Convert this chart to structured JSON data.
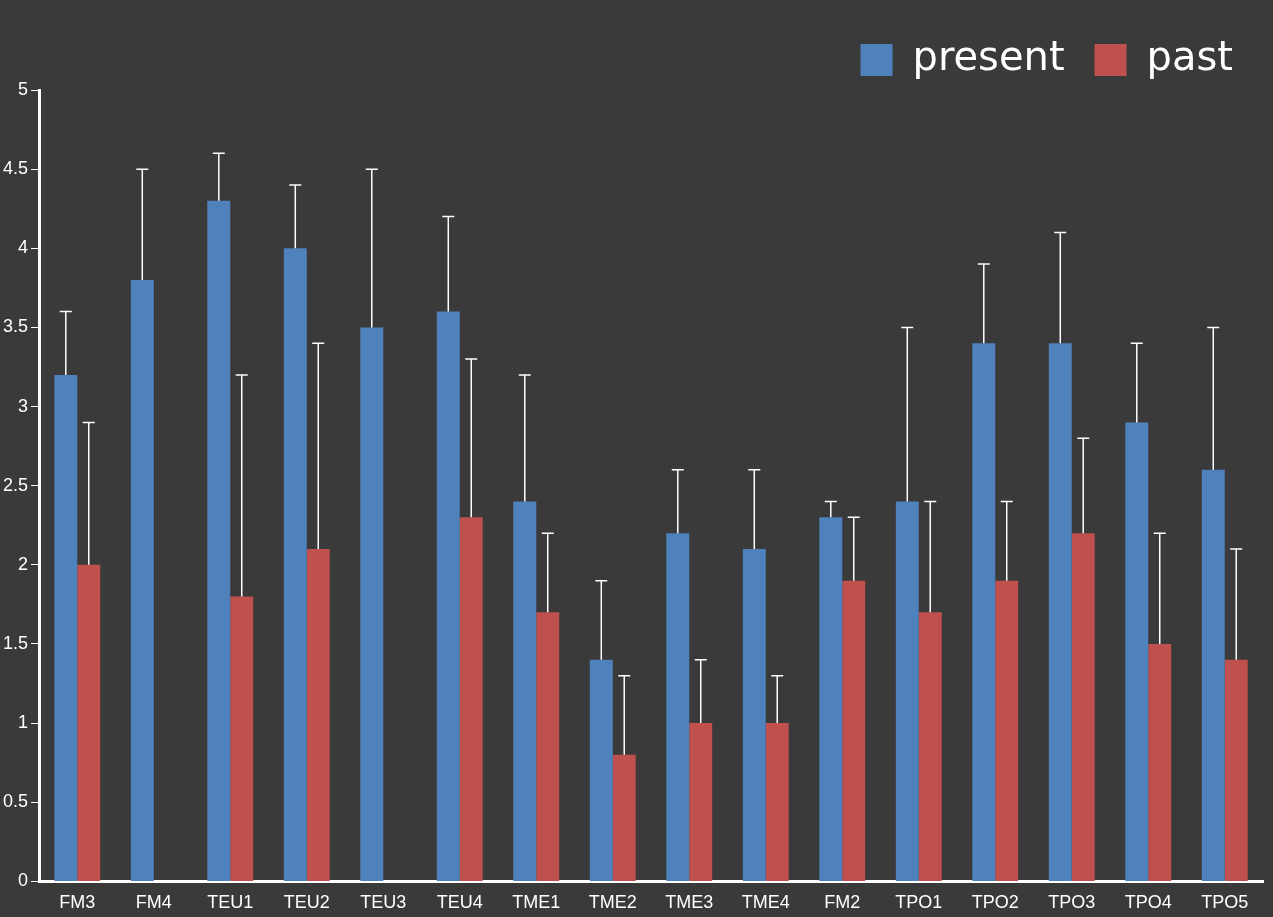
{
  "chart_data": {
    "type": "bar",
    "categories": [
      "FM3",
      "FM4",
      "TEU1",
      "TEU2",
      "TEU3",
      "TEU4",
      "TME1",
      "TME2",
      "TME3",
      "TME4",
      "FM2",
      "TPO1",
      "TPO2",
      "TPO3",
      "TPO4",
      "TPO5"
    ],
    "series": [
      {
        "name": "present",
        "color": "#4f81bd",
        "values": [
          3.2,
          3.8,
          4.3,
          4.0,
          3.5,
          3.6,
          2.4,
          1.4,
          2.2,
          2.1,
          2.3,
          2.4,
          3.4,
          3.4,
          2.9,
          2.6
        ],
        "errors": [
          [
            3.2,
            3.6
          ],
          [
            3.8,
            4.5
          ],
          [
            4.3,
            4.6
          ],
          [
            4.0,
            4.4
          ],
          [
            3.5,
            4.5
          ],
          [
            3.6,
            4.2
          ],
          [
            2.4,
            3.2
          ],
          [
            1.4,
            1.9
          ],
          [
            2.2,
            2.6
          ],
          [
            2.1,
            2.6
          ],
          [
            2.3,
            2.4
          ],
          [
            2.4,
            3.5
          ],
          [
            3.4,
            3.9
          ],
          [
            3.4,
            4.1
          ],
          [
            2.9,
            3.4
          ],
          [
            2.6,
            3.5
          ]
        ]
      },
      {
        "name": "past",
        "color": "#c0504d",
        "values": [
          2.0,
          null,
          1.8,
          2.1,
          null,
          2.3,
          1.7,
          0.8,
          1.0,
          1.0,
          1.9,
          1.7,
          1.9,
          2.2,
          1.5,
          1.4
        ],
        "errors": [
          [
            2.0,
            2.9
          ],
          null,
          [
            1.8,
            3.2
          ],
          [
            2.1,
            3.4
          ],
          null,
          [
            2.3,
            3.3
          ],
          [
            1.7,
            2.2
          ],
          [
            0.8,
            1.3
          ],
          [
            1.0,
            1.4
          ],
          [
            1.0,
            1.3
          ],
          [
            1.9,
            2.3
          ],
          [
            1.7,
            2.4
          ],
          [
            1.9,
            2.4
          ],
          [
            2.2,
            2.8
          ],
          [
            1.5,
            2.2
          ],
          [
            1.4,
            2.1
          ]
        ]
      }
    ],
    "ylim": [
      0,
      5
    ],
    "yticks": [
      0,
      0.5,
      1,
      1.5,
      2,
      2.5,
      3,
      3.5,
      4,
      4.5,
      5
    ],
    "grid": false,
    "legend": "top right"
  }
}
